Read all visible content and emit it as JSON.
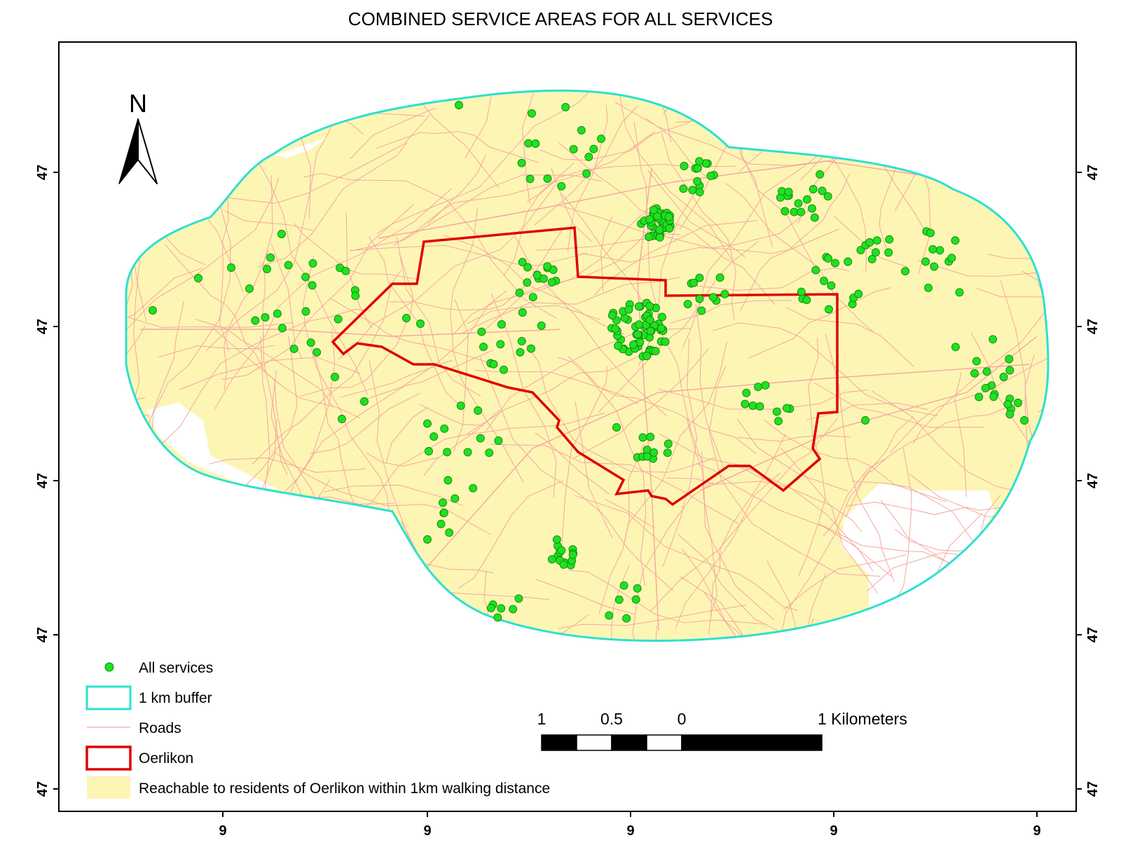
{
  "title": "COMBINED SERVICE AREAS FOR ALL SERVICES",
  "north_label": "N",
  "axes": {
    "x_ticks": [
      "9",
      "9",
      "9",
      "9",
      "9"
    ],
    "y_ticks": [
      "47",
      "47",
      "47",
      "47",
      "47"
    ]
  },
  "legend": {
    "items": [
      {
        "label": "All services",
        "symbol": "point"
      },
      {
        "label": "1 km buffer",
        "symbol": "outline-rect"
      },
      {
        "label": "Roads",
        "symbol": "line"
      },
      {
        "label": "Oerlikon",
        "symbol": "outline-rect"
      },
      {
        "label": "Reachable to residents of Oerlikon within 1km walking distance",
        "symbol": "filled-rect"
      }
    ]
  },
  "scale_bar": {
    "labels": [
      "1",
      "0.5",
      "0",
      "1 Kilometers"
    ]
  },
  "colors": {
    "buffer": "#2ce0d2",
    "reachable_fill": "#fdf5b4",
    "roads": "#f3a7a0",
    "oerlikon": "#e00000",
    "services": "#22e022",
    "service_stroke": "#0a8a0a"
  }
}
